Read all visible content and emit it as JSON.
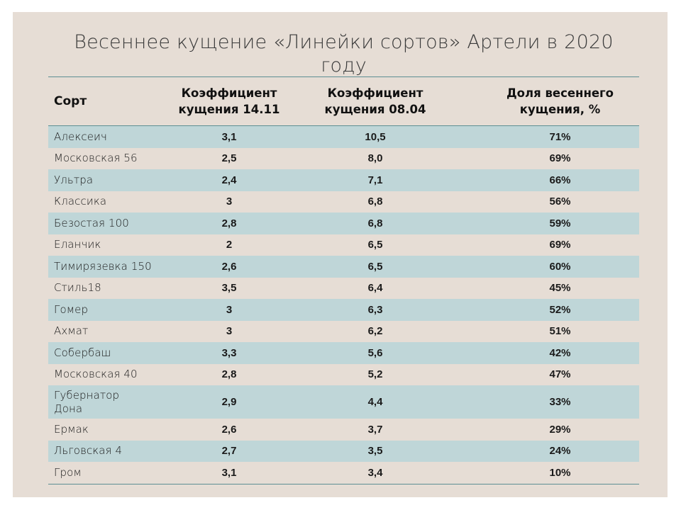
{
  "title": "Весеннее кущение «Линейки сортов» Артели в 2020 году",
  "table": {
    "headers": [
      "Сорт",
      "Коэффициент кущения 14.11",
      "Коэффициент кущения 08.04",
      "Доля весеннего кущения, %"
    ],
    "rows": [
      {
        "sort": "Алексеич",
        "k1411": "3,1",
        "k0804": "10,5",
        "share": "71%"
      },
      {
        "sort": "Московская 56",
        "k1411": "2,5",
        "k0804": "8,0",
        "share": "69%"
      },
      {
        "sort": "Ультра",
        "k1411": "2,4",
        "k0804": "7,1",
        "share": "66%"
      },
      {
        "sort": "Классика",
        "k1411": "3",
        "k0804": "6,8",
        "share": "56%"
      },
      {
        "sort": "Безостая 100",
        "k1411": "2,8",
        "k0804": "6,8",
        "share": "59%"
      },
      {
        "sort": "Еланчик",
        "k1411": "2",
        "k0804": "6,5",
        "share": "69%"
      },
      {
        "sort": "Тимирязевка 150",
        "k1411": "2,6",
        "k0804": "6,5",
        "share": "60%"
      },
      {
        "sort": "Стиль18",
        "k1411": "3,5",
        "k0804": "6,4",
        "share": "45%"
      },
      {
        "sort": "Гомер",
        "k1411": "3",
        "k0804": "6,3",
        "share": "52%"
      },
      {
        "sort": "Ахмат",
        "k1411": "3",
        "k0804": "6,2",
        "share": "51%"
      },
      {
        "sort": "Собербаш",
        "k1411": "3,3",
        "k0804": "5,6",
        "share": "42%"
      },
      {
        "sort": "Московская 40",
        "k1411": "2,8",
        "k0804": "5,2",
        "share": "47%"
      },
      {
        "sort": "Губернатор Дона",
        "k1411": "2,9",
        "k0804": "4,4",
        "share": "33%"
      },
      {
        "sort": "Ермак",
        "k1411": "2,6",
        "k0804": "3,7",
        "share": "29%"
      },
      {
        "sort": "Льговская 4",
        "k1411": "2,7",
        "k0804": "3,5",
        "share": "24%"
      },
      {
        "sort": "Гром",
        "k1411": "3,1",
        "k0804": "3,4",
        "share": "10%"
      }
    ]
  },
  "colors": {
    "slide_bg": "#e6ddd5",
    "band_row": "#bfd6d8",
    "rule_line": "#5e8f94"
  }
}
